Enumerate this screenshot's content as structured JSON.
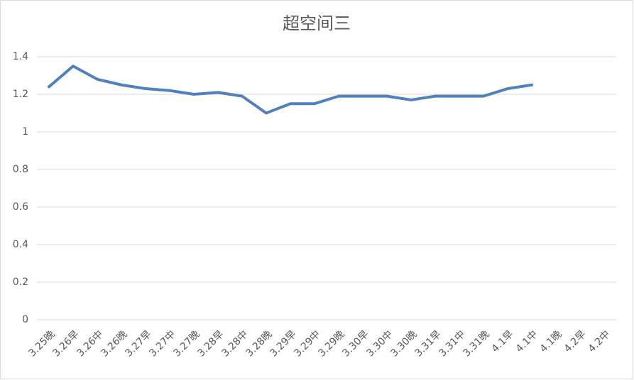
{
  "chart_data": {
    "type": "line",
    "title": "超空间三",
    "categories": [
      "3.25晚",
      "3.26早",
      "3.26中",
      "3.26晚",
      "3.27早",
      "3.27中",
      "3.27晚",
      "3.28早",
      "3.28中",
      "3.28晚",
      "3.29早",
      "3.29中",
      "3.29晚",
      "3.30早",
      "3.30中",
      "3.30晚",
      "3.31早",
      "3.31中",
      "3.31晚",
      "4.1早",
      "4.1中",
      "4.1晚",
      "4.2早",
      "4.2中"
    ],
    "values": [
      1.24,
      1.35,
      1.28,
      1.25,
      1.23,
      1.22,
      1.2,
      1.21,
      1.19,
      1.1,
      1.15,
      1.15,
      1.19,
      1.19,
      1.19,
      1.17,
      1.19,
      1.19,
      1.19,
      1.23,
      1.25,
      null,
      null,
      null
    ],
    "color": "#4f81bd",
    "ylim": [
      0,
      1.4
    ],
    "yticks": [
      0,
      0.2,
      0.4,
      0.6,
      0.8,
      1,
      1.2,
      1.4
    ],
    "grid": true
  }
}
